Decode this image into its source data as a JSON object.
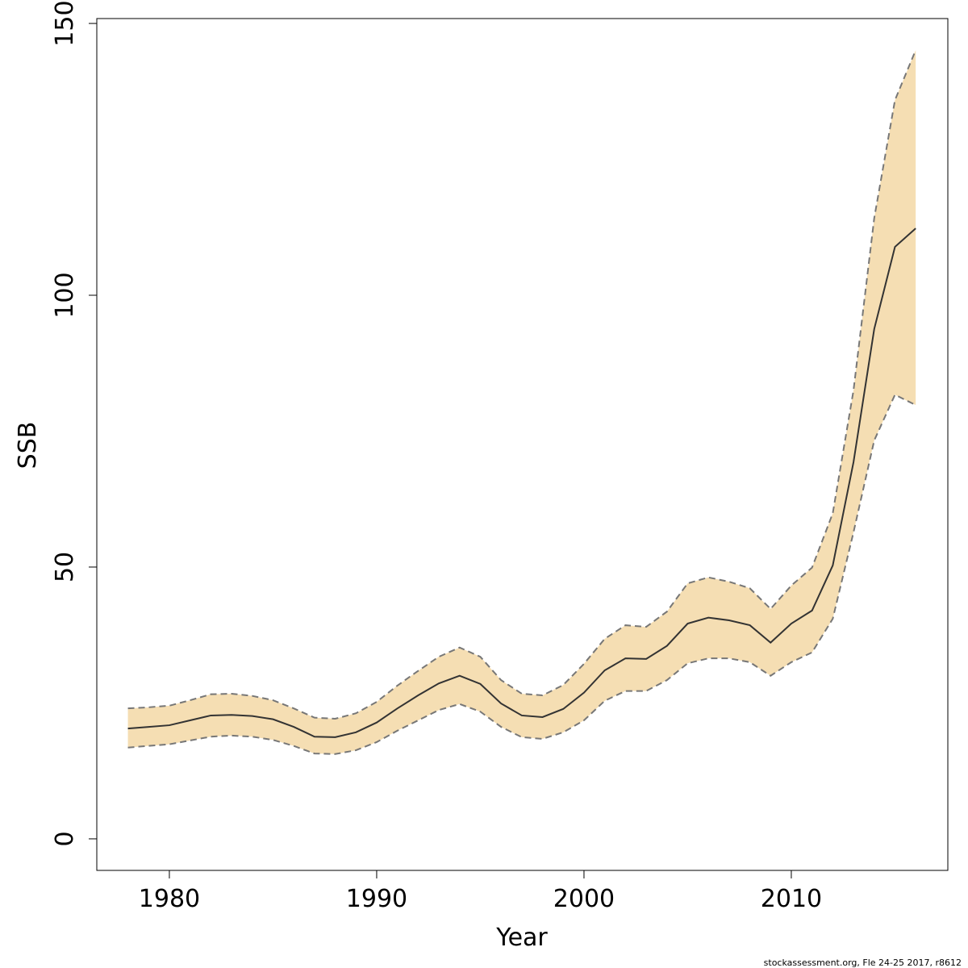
{
  "chart_data": {
    "type": "line",
    "x_label": "Year",
    "y_label": "SSB",
    "caption": "stockassessment.org, Fle 24-25 2017, r8612",
    "x": [
      1978,
      1979,
      1980,
      1981,
      1982,
      1983,
      1984,
      1985,
      1986,
      1987,
      1988,
      1989,
      1990,
      1991,
      1992,
      1993,
      1994,
      1995,
      1996,
      1997,
      1998,
      1999,
      2000,
      2001,
      2002,
      2003,
      2004,
      2005,
      2006,
      2007,
      2008,
      2009,
      2010,
      2011,
      2012,
      2013,
      2014,
      2015,
      2016
    ],
    "series": [
      {
        "color": "#333333",
        "dashed": false,
        "values": [
          20.3,
          20.6,
          20.9,
          21.8,
          22.7,
          22.8,
          22.6,
          22.0,
          20.6,
          18.8,
          18.7,
          19.6,
          21.4,
          24.0,
          26.4,
          28.6,
          30.0,
          28.5,
          24.9,
          22.7,
          22.4,
          23.9,
          26.9,
          31.0,
          33.2,
          33.1,
          35.5,
          39.6,
          40.7,
          40.2,
          39.3,
          36.1,
          39.6,
          42.0,
          50.3,
          69.3,
          93.8,
          108.9,
          112.3
        ]
      },
      {
        "color": "#777777",
        "dashed": true,
        "values": [
          24.0,
          24.2,
          24.5,
          25.5,
          26.6,
          26.7,
          26.3,
          25.5,
          24.0,
          22.3,
          22.1,
          23.1,
          25.2,
          28.2,
          30.9,
          33.5,
          35.2,
          33.5,
          29.2,
          26.7,
          26.4,
          28.3,
          32.2,
          36.8,
          39.3,
          39.0,
          41.8,
          47.0,
          48.1,
          47.3,
          46.1,
          42.3,
          46.6,
          49.9,
          59.9,
          82.5,
          114.2,
          135.9,
          145.1
        ]
      },
      {
        "color": "#777777",
        "dashed": true,
        "values": [
          16.8,
          17.1,
          17.4,
          18.1,
          18.8,
          19.0,
          18.8,
          18.2,
          17.1,
          15.7,
          15.6,
          16.3,
          17.8,
          19.9,
          21.8,
          23.7,
          24.8,
          23.4,
          20.6,
          18.7,
          18.4,
          19.6,
          21.8,
          25.4,
          27.2,
          27.2,
          29.2,
          32.3,
          33.2,
          33.2,
          32.5,
          30.0,
          32.5,
          34.3,
          40.5,
          56.4,
          73.3,
          81.7,
          79.8
        ]
      }
    ],
    "band_color": "#f5deb3",
    "xlim": [
      1976.5,
      2017.55
    ],
    "xticks": [
      1980,
      1990,
      2000,
      2010
    ],
    "ylim": [
      -5.8,
      150.9
    ],
    "yticks": [
      0,
      50,
      100,
      150
    ]
  }
}
